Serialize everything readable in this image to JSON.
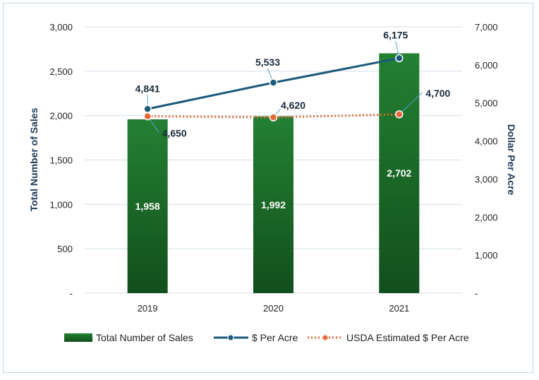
{
  "chart_data": {
    "type": "bar",
    "title": "",
    "categories": [
      "2019",
      "2020",
      "2021"
    ],
    "series": [
      {
        "name": "Total Number of Sales",
        "type": "bar",
        "axis": "left",
        "color": "#1e6b2c",
        "values": [
          1958,
          1992,
          2702
        ],
        "labels": [
          "1,958",
          "1,992",
          "2,702"
        ]
      },
      {
        "name": "$ Per Acre",
        "type": "line",
        "axis": "right",
        "color": "#1b5a7a",
        "values": [
          4841,
          5533,
          6175
        ],
        "labels": [
          "4,841",
          "5,533",
          "6,175"
        ]
      },
      {
        "name": "USDA Estimated $ Per Acre",
        "type": "line",
        "axis": "right",
        "color": "#e36a3a",
        "values": [
          4650,
          4620,
          4700
        ],
        "labels": [
          "4,650",
          "4,620",
          "4,700"
        ]
      }
    ],
    "y_left": {
      "label": "Total Number of Sales",
      "min": 0,
      "max": 3000,
      "ticks": [
        0,
        500,
        1000,
        1500,
        2000,
        2500,
        3000
      ],
      "tick_labels": [
        "-",
        "500",
        "1,000",
        "1,500",
        "2,000",
        "2,500",
        "3,000"
      ]
    },
    "y_right": {
      "label": "Dollar Per Acre",
      "min": 0,
      "max": 7000,
      "ticks": [
        0,
        1000,
        2000,
        3000,
        4000,
        5000,
        6000,
        7000
      ],
      "tick_labels": [
        "-",
        "1,000",
        "2,000",
        "3,000",
        "4,000",
        "5,000",
        "6,000",
        "7,000"
      ]
    },
    "grid": true,
    "legend_position": "bottom"
  }
}
